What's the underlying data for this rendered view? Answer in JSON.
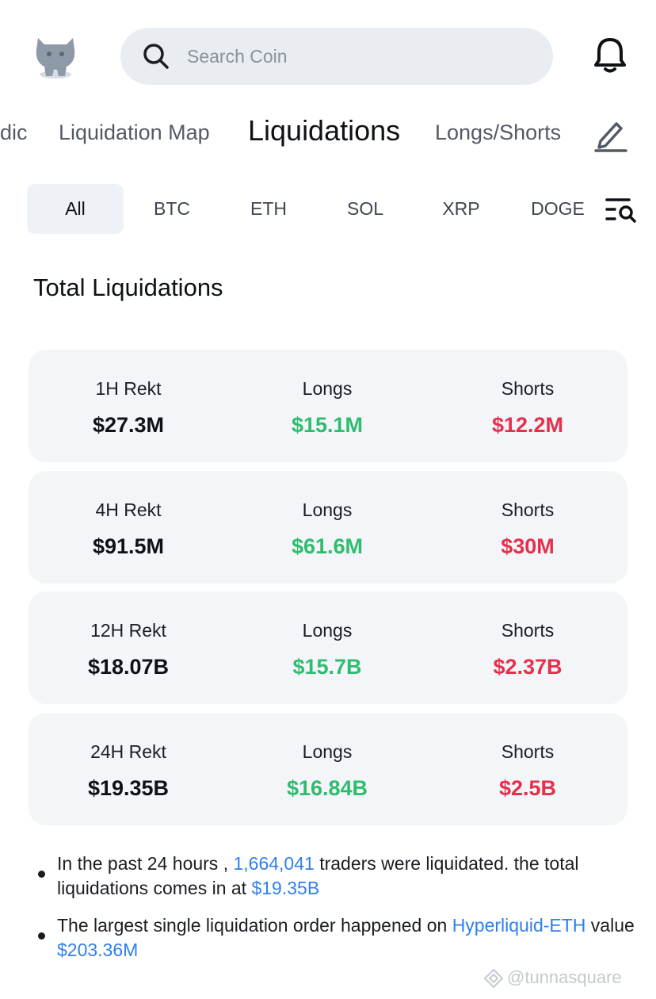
{
  "header": {
    "search_placeholder": "Search Coin"
  },
  "nav_tabs": [
    {
      "label": "dic"
    },
    {
      "label": "Liquidation Map"
    },
    {
      "label": "Liquidations"
    },
    {
      "label": "Longs/Shorts"
    }
  ],
  "coin_filters": [
    {
      "label": "All"
    },
    {
      "label": "BTC"
    },
    {
      "label": "ETH"
    },
    {
      "label": "SOL"
    },
    {
      "label": "XRP"
    },
    {
      "label": "DOGE"
    }
  ],
  "section_title": "Total Liquidations",
  "cards": [
    {
      "period": "1H  Rekt",
      "total": "$27.3M",
      "longs_label": "Longs",
      "longs": "$15.1M",
      "shorts_label": "Shorts",
      "shorts": "$12.2M"
    },
    {
      "period": "4H Rekt",
      "total": "$91.5M",
      "longs_label": "Longs",
      "longs": "$61.6M",
      "shorts_label": "Shorts",
      "shorts": "$30M"
    },
    {
      "period": "12H Rekt",
      "total": "$18.07B",
      "longs_label": "Longs",
      "longs": "$15.7B",
      "shorts_label": "Shorts",
      "shorts": "$2.37B"
    },
    {
      "period": "24H Rekt",
      "total": "$19.35B",
      "longs_label": "Longs",
      "longs": "$16.84B",
      "shorts_label": "Shorts",
      "shorts": "$2.5B"
    }
  ],
  "notes": [
    {
      "p1": "In the past 24 hours , ",
      "h1": "1,664,041",
      "p2": " traders were liquidated. the total liquidations comes in at ",
      "h2": "$19.35B"
    },
    {
      "p1": "The largest single liquidation order happened on ",
      "h1": "Hyperliquid-ETH",
      "p2": " value ",
      "h2": "$203.36M"
    }
  ],
  "watermark": "@tunnasquare",
  "colors": {
    "long": "#2ebd6f",
    "short": "#e6304b",
    "highlight": "#2f80ed"
  }
}
